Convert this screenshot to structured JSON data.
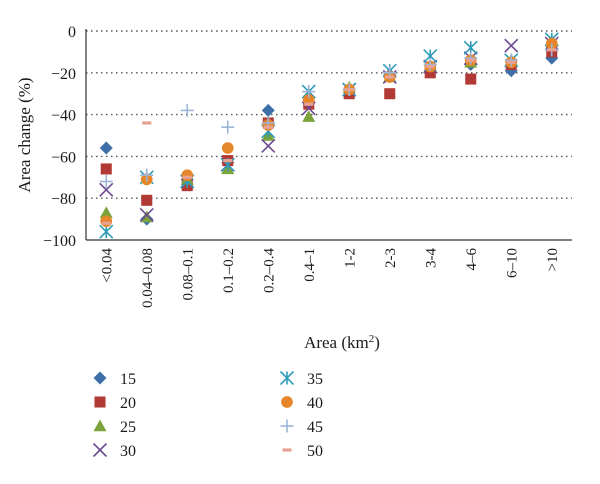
{
  "chart_data": {
    "type": "scatter",
    "xlabel": "Area (km",
    "xlabel_superscript": "2",
    "xlabel_suffix": ")",
    "ylabel": "Area change (%)",
    "ylim": [
      -100,
      0
    ],
    "yticks": [
      0,
      -20,
      -40,
      -60,
      -80,
      -100
    ],
    "grid": "horizontal dotted",
    "legend_position": "bottom",
    "categories": [
      "<0.04",
      "0.04–0.08",
      "0.08–0.1",
      "0.1–0.2",
      "0.2–0.4",
      "0.4–1",
      "1-2",
      "2-3",
      "3-4",
      "4–6",
      "6–10",
      ">10"
    ],
    "series": [
      {
        "name": "15",
        "marker": "diamond",
        "color": "#3e6fa8",
        "values": [
          -56,
          -90,
          -71,
          -63,
          -38,
          -32,
          -28,
          -21,
          -19,
          -16,
          -19,
          -13
        ]
      },
      {
        "name": "20",
        "marker": "square",
        "color": "#b23a36",
        "values": [
          -66,
          -81,
          -74,
          -62,
          -44,
          -35,
          -30,
          -30,
          -20,
          -23,
          -16,
          -10
        ]
      },
      {
        "name": "25",
        "marker": "triangle",
        "color": "#7ba33b",
        "values": [
          -87,
          -89,
          -71,
          -66,
          -50,
          -41,
          -27,
          -22,
          -17,
          -15,
          -14,
          -5
        ]
      },
      {
        "name": "30",
        "marker": "x",
        "color": "#6c4a91",
        "values": [
          -76,
          -88,
          -72,
          -64,
          -55,
          -37,
          -28,
          -22,
          -17,
          -13,
          -7,
          -6
        ]
      },
      {
        "name": "35",
        "marker": "asterisk",
        "color": "#2e9cb8",
        "values": [
          -96,
          -70,
          -72,
          -64,
          -48,
          -29,
          -28,
          -19,
          -12,
          -8,
          -14,
          -4
        ]
      },
      {
        "name": "40",
        "marker": "circle",
        "color": "#e6862b",
        "values": [
          -91,
          -71,
          -69,
          -56,
          -45,
          -33,
          -28,
          -22,
          -17,
          -14,
          -15,
          -6
        ]
      },
      {
        "name": "45",
        "marker": "plus",
        "color": "#9db4d6",
        "values": [
          -72,
          -69,
          -38,
          -46,
          -44,
          -29,
          -28,
          -20,
          -16,
          -13,
          -14,
          -9
        ]
      },
      {
        "name": "50",
        "marker": "dash",
        "color": "#e8a294",
        "values": [
          -92,
          -44,
          -70,
          -62,
          -46,
          -35,
          -28,
          -22,
          -17,
          -14,
          -15,
          -9
        ]
      }
    ]
  }
}
